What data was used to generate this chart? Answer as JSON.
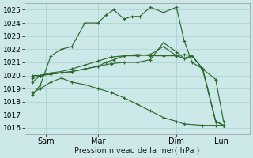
{
  "background_color": "#cce8e8",
  "grid_color": "#b0d8d8",
  "line_color": "#2d6a2d",
  "marker_color": "#2d6a2d",
  "xlabel": "Pression niveau de la mer( hPa )",
  "ylim": [
    1015.5,
    1025.5
  ],
  "yticks": [
    1016,
    1017,
    1018,
    1019,
    1020,
    1021,
    1022,
    1023,
    1024,
    1025
  ],
  "xlim": [
    -0.3,
    8.3
  ],
  "xtick_positions": [
    0.5,
    2.5,
    5.5,
    7.2
  ],
  "xtick_labels": [
    "Sam",
    "Mar",
    "Dim",
    "Lun"
  ],
  "series": [
    {
      "x": [
        0,
        0.3,
        0.7,
        1.1,
        1.5,
        2.0,
        2.5,
        2.8,
        3.1,
        3.5,
        3.8,
        4.1,
        4.5,
        5.0,
        5.5,
        5.8,
        6.1,
        6.5,
        7.0,
        7.3
      ],
      "y": [
        1018.5,
        1019.3,
        1021.5,
        1022.0,
        1022.2,
        1024.0,
        1024.0,
        1024.6,
        1025.0,
        1024.3,
        1024.5,
        1024.5,
        1025.2,
        1024.8,
        1025.2,
        1022.6,
        1021.0,
        1020.5,
        1019.7,
        1016.5
      ]
    },
    {
      "x": [
        0,
        0.3,
        0.7,
        1.1,
        1.5,
        2.0,
        2.5,
        2.8,
        3.1,
        3.5,
        4.0,
        4.5,
        5.0,
        5.5,
        5.8,
        6.1,
        6.5,
        7.0,
        7.3
      ],
      "y": [
        1019.5,
        1020.0,
        1020.1,
        1020.2,
        1020.3,
        1020.5,
        1020.7,
        1021.0,
        1021.2,
        1021.5,
        1021.6,
        1021.5,
        1021.5,
        1021.5,
        1021.6,
        1021.5,
        1020.5,
        1016.5,
        1016.2
      ]
    },
    {
      "x": [
        0,
        0.3,
        0.7,
        1.1,
        1.5,
        2.0,
        2.5,
        3.0,
        3.5,
        4.0,
        4.5,
        5.0,
        5.5,
        5.8,
        6.1,
        6.5,
        7.0,
        7.3
      ],
      "y": [
        1019.8,
        1020.0,
        1020.2,
        1020.3,
        1020.5,
        1020.8,
        1021.1,
        1021.4,
        1021.5,
        1021.5,
        1021.6,
        1022.2,
        1021.5,
        1021.3,
        1021.5,
        1020.5,
        1016.5,
        1016.2
      ]
    },
    {
      "x": [
        0,
        0.3,
        0.7,
        1.1,
        1.5,
        2.0,
        2.5,
        3.0,
        3.5,
        4.0,
        4.5,
        5.0,
        5.5,
        5.8,
        6.1,
        6.5,
        7.0,
        7.3
      ],
      "y": [
        1020.0,
        1020.0,
        1020.1,
        1020.2,
        1020.3,
        1020.5,
        1020.7,
        1020.9,
        1021.0,
        1021.0,
        1021.2,
        1022.5,
        1021.8,
        1021.3,
        1021.5,
        1020.5,
        1016.5,
        1016.2
      ]
    },
    {
      "x": [
        0,
        0.3,
        0.7,
        1.1,
        1.5,
        2.0,
        2.5,
        3.0,
        3.5,
        4.0,
        4.5,
        5.0,
        5.5,
        5.8,
        6.5,
        7.0,
        7.3
      ],
      "y": [
        1018.7,
        1019.0,
        1019.5,
        1019.8,
        1019.5,
        1019.3,
        1019.0,
        1018.7,
        1018.3,
        1017.8,
        1017.3,
        1016.8,
        1016.5,
        1016.3,
        1016.2,
        1016.2,
        1016.2
      ]
    }
  ],
  "figsize": [
    3.2,
    2.0
  ],
  "dpi": 100
}
